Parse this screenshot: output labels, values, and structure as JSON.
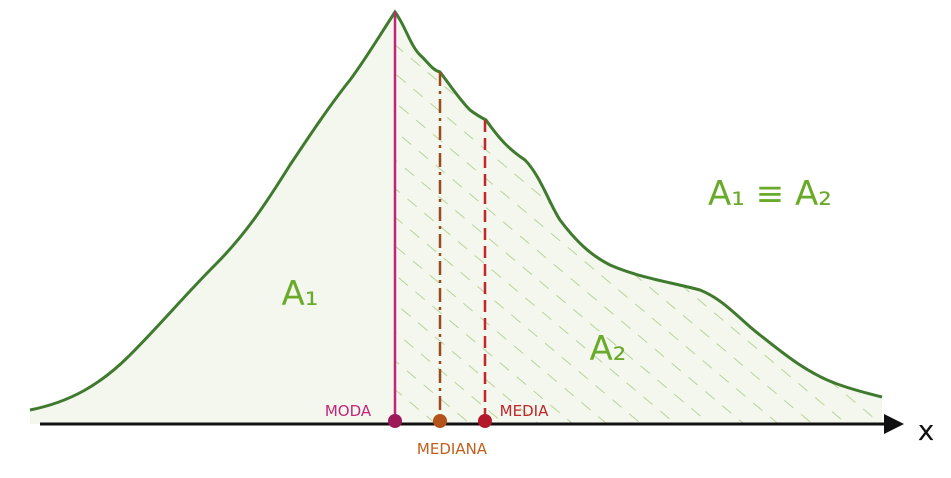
{
  "labels": {
    "area_left": "A₁",
    "area_right": "A₂",
    "equality": "A₁ ≡ A₂",
    "mode": "MODA",
    "median": "MEDIANA",
    "mean": "MEDIA",
    "x_axis": "x"
  }
}
